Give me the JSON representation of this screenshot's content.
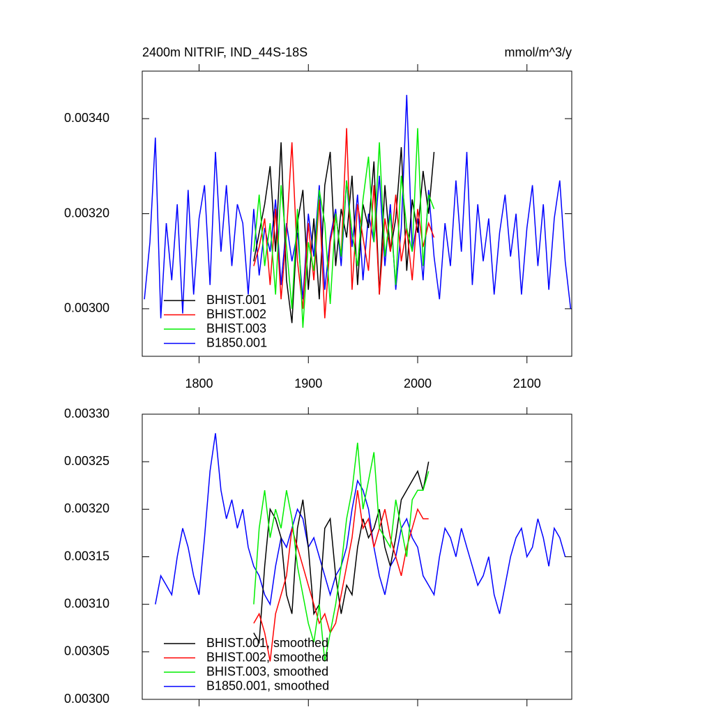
{
  "chart_data": [
    {
      "type": "line",
      "title": "2400m NITRIF, IND_44S-18S",
      "units": "mmol/m^3/y",
      "xlim": [
        1748,
        2141
      ],
      "xticks": [
        1800,
        1900,
        2000,
        2100
      ],
      "ylim": [
        0.0029,
        0.0035
      ],
      "yticks": [
        {
          "value": 0.003,
          "label": "0.00300"
        },
        {
          "value": 0.0032,
          "label": "0.00320"
        },
        {
          "value": 0.0034,
          "label": "0.00340"
        }
      ],
      "legend": "lower left",
      "series": [
        {
          "name": "B1850.001",
          "color": "#0000ff",
          "x": [
            1750,
            1755,
            1760,
            1765,
            1770,
            1775,
            1780,
            1785,
            1790,
            1795,
            1800,
            1805,
            1810,
            1815,
            1820,
            1825,
            1830,
            1835,
            1840,
            1845,
            1850,
            1855,
            1860,
            1865,
            1870,
            1875,
            1880,
            1885,
            1890,
            1895,
            1900,
            1905,
            1910,
            1915,
            1920,
            1925,
            1930,
            1935,
            1940,
            1945,
            1950,
            1955,
            1960,
            1965,
            1970,
            1975,
            1980,
            1985,
            1990,
            1995,
            2000,
            2005,
            2010,
            2015,
            2020,
            2025,
            2030,
            2035,
            2040,
            2045,
            2050,
            2055,
            2060,
            2065,
            2070,
            2075,
            2080,
            2085,
            2090,
            2095,
            2100,
            2105,
            2110,
            2115,
            2120,
            2125,
            2130,
            2135,
            2140
          ],
          "values": [
            0.00302,
            0.00314,
            0.00336,
            0.00298,
            0.00318,
            0.00306,
            0.00322,
            0.00299,
            0.00325,
            0.00303,
            0.00319,
            0.00326,
            0.00305,
            0.00333,
            0.00312,
            0.00326,
            0.00309,
            0.00322,
            0.00318,
            0.00303,
            0.00321,
            0.00307,
            0.00317,
            0.00312,
            0.00323,
            0.00305,
            0.00318,
            0.0031,
            0.00316,
            0.00302,
            0.0032,
            0.00311,
            0.00326,
            0.00304,
            0.00315,
            0.00321,
            0.00309,
            0.00327,
            0.00313,
            0.00324,
            0.00306,
            0.0032,
            0.00314,
            0.00328,
            0.00309,
            0.00322,
            0.00304,
            0.00317,
            0.00345,
            0.00312,
            0.00319,
            0.00306,
            0.00325,
            0.00311,
            0.00302,
            0.00318,
            0.00309,
            0.00327,
            0.00312,
            0.00333,
            0.00305,
            0.00322,
            0.0031,
            0.00319,
            0.00303,
            0.00316,
            0.00324,
            0.00311,
            0.0032,
            0.00303,
            0.00317,
            0.00326,
            0.00309,
            0.00322,
            0.00304,
            0.00319,
            0.00327,
            0.0031,
            0.003
          ]
        },
        {
          "name": "BHIST.001",
          "color": "#000000",
          "x": [
            1850,
            1855,
            1860,
            1865,
            1870,
            1875,
            1880,
            1885,
            1890,
            1895,
            1900,
            1905,
            1910,
            1915,
            1920,
            1925,
            1930,
            1935,
            1940,
            1945,
            1950,
            1955,
            1960,
            1965,
            1970,
            1975,
            1980,
            1985,
            1990,
            1995,
            2000,
            2005,
            2010,
            2015
          ],
          "values": [
            0.0031,
            0.00316,
            0.00322,
            0.0033,
            0.00312,
            0.00335,
            0.00306,
            0.00297,
            0.00318,
            0.00325,
            0.00304,
            0.00319,
            0.00302,
            0.00326,
            0.00333,
            0.00309,
            0.00321,
            0.00315,
            0.00328,
            0.00305,
            0.00322,
            0.00317,
            0.00331,
            0.00303,
            0.00326,
            0.00312,
            0.00319,
            0.00334,
            0.00308,
            0.00323,
            0.00316,
            0.00329,
            0.0032,
            0.00333
          ]
        },
        {
          "name": "BHIST.002",
          "color": "#ff0000",
          "x": [
            1850,
            1855,
            1860,
            1865,
            1870,
            1875,
            1880,
            1885,
            1890,
            1895,
            1900,
            1905,
            1910,
            1915,
            1920,
            1925,
            1930,
            1935,
            1940,
            1945,
            1950,
            1955,
            1960,
            1965,
            1970,
            1975,
            1980,
            1985,
            1990,
            1995,
            2000,
            2005,
            2010,
            2015
          ],
          "values": [
            0.00309,
            0.00313,
            0.00319,
            0.00305,
            0.00321,
            0.00302,
            0.00316,
            0.00335,
            0.0031,
            0.003,
            0.00318,
            0.00306,
            0.00323,
            0.00298,
            0.00314,
            0.0032,
            0.00311,
            0.00338,
            0.00304,
            0.00322,
            0.00315,
            0.00308,
            0.00326,
            0.00303,
            0.00319,
            0.00312,
            0.00324,
            0.0031,
            0.00317,
            0.00306,
            0.00321,
            0.00313,
            0.00318,
            0.00315
          ]
        },
        {
          "name": "BHIST.003",
          "color": "#00ee00",
          "x": [
            1850,
            1855,
            1860,
            1865,
            1870,
            1875,
            1880,
            1885,
            1890,
            1895,
            1900,
            1905,
            1910,
            1915,
            1920,
            1925,
            1930,
            1935,
            1940,
            1945,
            1950,
            1955,
            1960,
            1965,
            1970,
            1975,
            1980,
            1985,
            1990,
            1995,
            2000,
            2005,
            2010,
            2015
          ],
          "values": [
            0.00312,
            0.00324,
            0.00309,
            0.00318,
            0.00303,
            0.00326,
            0.00313,
            0.003,
            0.00321,
            0.00296,
            0.00314,
            0.00308,
            0.00325,
            0.00318,
            0.00301,
            0.0032,
            0.00311,
            0.00327,
            0.00316,
            0.00309,
            0.00323,
            0.00332,
            0.00314,
            0.00335,
            0.00311,
            0.0032,
            0.00305,
            0.00328,
            0.00317,
            0.00312,
            0.00338,
            0.00309,
            0.00324,
            0.00321
          ]
        }
      ],
      "legend_order": [
        1,
        2,
        3,
        0
      ]
    },
    {
      "type": "line",
      "xlim": [
        1748,
        2141
      ],
      "xticks": [
        1800,
        1900,
        2000,
        2100
      ],
      "ylim": [
        0.003,
        0.0033
      ],
      "yticks": [
        {
          "value": 0.003,
          "label": "0.00300"
        },
        {
          "value": 0.00305,
          "label": "0.00305"
        },
        {
          "value": 0.0031,
          "label": "0.00310"
        },
        {
          "value": 0.00315,
          "label": "0.00315"
        },
        {
          "value": 0.0032,
          "label": "0.00320"
        },
        {
          "value": 0.00325,
          "label": "0.00325"
        },
        {
          "value": 0.0033,
          "label": "0.00330"
        }
      ],
      "legend": "lower left",
      "series": [
        {
          "name": "B1850.001, smoothed",
          "color": "#0000ff",
          "x": [
            1760,
            1765,
            1770,
            1775,
            1780,
            1785,
            1790,
            1795,
            1800,
            1805,
            1810,
            1815,
            1820,
            1825,
            1830,
            1835,
            1840,
            1845,
            1850,
            1855,
            1860,
            1865,
            1870,
            1875,
            1880,
            1885,
            1890,
            1895,
            1900,
            1905,
            1910,
            1915,
            1920,
            1925,
            1930,
            1935,
            1940,
            1945,
            1950,
            1955,
            1960,
            1965,
            1970,
            1975,
            1980,
            1985,
            1990,
            1995,
            2000,
            2005,
            2010,
            2015,
            2020,
            2025,
            2030,
            2035,
            2040,
            2045,
            2050,
            2055,
            2060,
            2065,
            2070,
            2075,
            2080,
            2085,
            2090,
            2095,
            2100,
            2105,
            2110,
            2115,
            2120,
            2125,
            2130,
            2135
          ],
          "values": [
            0.0031,
            0.00313,
            0.00312,
            0.00311,
            0.00315,
            0.00318,
            0.00316,
            0.00313,
            0.00311,
            0.00317,
            0.00324,
            0.00328,
            0.00322,
            0.00319,
            0.00321,
            0.00318,
            0.0032,
            0.00316,
            0.00314,
            0.00313,
            0.00311,
            0.0031,
            0.00314,
            0.00317,
            0.00316,
            0.00318,
            0.0032,
            0.00319,
            0.00316,
            0.00317,
            0.00315,
            0.00313,
            0.00311,
            0.00313,
            0.00314,
            0.00316,
            0.0032,
            0.00323,
            0.00322,
            0.0032,
            0.00316,
            0.00313,
            0.00311,
            0.00314,
            0.00315,
            0.00318,
            0.00319,
            0.00317,
            0.00316,
            0.00313,
            0.00312,
            0.00311,
            0.00315,
            0.00318,
            0.00317,
            0.00315,
            0.00318,
            0.00316,
            0.00314,
            0.00312,
            0.00313,
            0.00315,
            0.00311,
            0.00309,
            0.00312,
            0.00315,
            0.00317,
            0.00318,
            0.00315,
            0.00316,
            0.00319,
            0.00317,
            0.00314,
            0.00318,
            0.00317,
            0.00315
          ]
        },
        {
          "name": "BHIST.001, smoothed",
          "color": "#000000",
          "x": [
            1850,
            1855,
            1860,
            1865,
            1870,
            1875,
            1880,
            1885,
            1890,
            1895,
            1900,
            1905,
            1910,
            1915,
            1920,
            1925,
            1930,
            1935,
            1940,
            1945,
            1950,
            1955,
            1960,
            1965,
            1970,
            1975,
            1980,
            1985,
            1990,
            1995,
            2000,
            2005,
            2010
          ],
          "values": [
            0.00307,
            0.00306,
            0.00314,
            0.0032,
            0.00319,
            0.00317,
            0.00311,
            0.00309,
            0.00318,
            0.00321,
            0.00316,
            0.00309,
            0.0031,
            0.00318,
            0.00319,
            0.00313,
            0.00309,
            0.00312,
            0.00311,
            0.00316,
            0.00319,
            0.00317,
            0.00318,
            0.0032,
            0.00316,
            0.00314,
            0.00317,
            0.00321,
            0.00322,
            0.00323,
            0.00324,
            0.00322,
            0.00325
          ]
        },
        {
          "name": "BHIST.002, smoothed",
          "color": "#ff0000",
          "x": [
            1850,
            1855,
            1860,
            1865,
            1870,
            1875,
            1880,
            1885,
            1890,
            1895,
            1900,
            1905,
            1910,
            1915,
            1920,
            1925,
            1930,
            1935,
            1940,
            1945,
            1950,
            1955,
            1960,
            1965,
            1970,
            1975,
            1980,
            1985,
            1990,
            1995,
            2000,
            2005,
            2010
          ],
          "values": [
            0.00308,
            0.00309,
            0.00307,
            0.00304,
            0.00309,
            0.00311,
            0.00313,
            0.00318,
            0.00316,
            0.00314,
            0.00312,
            0.0031,
            0.00308,
            0.00309,
            0.00307,
            0.00308,
            0.00311,
            0.00314,
            0.00317,
            0.00322,
            0.00318,
            0.00319,
            0.00316,
            0.00318,
            0.0032,
            0.00317,
            0.00315,
            0.00313,
            0.00316,
            0.00318,
            0.0032,
            0.00319,
            0.00319
          ]
        },
        {
          "name": "BHIST.003, smoothed",
          "color": "#00ee00",
          "x": [
            1850,
            1855,
            1860,
            1865,
            1870,
            1875,
            1880,
            1885,
            1890,
            1895,
            1900,
            1905,
            1910,
            1915,
            1920,
            1925,
            1930,
            1935,
            1940,
            1945,
            1950,
            1955,
            1960,
            1965,
            1970,
            1975,
            1980,
            1985,
            1990,
            1995,
            2000,
            2005,
            2010
          ],
          "values": [
            0.0031,
            0.00318,
            0.00322,
            0.00317,
            0.0032,
            0.00318,
            0.00322,
            0.00319,
            0.00314,
            0.00311,
            0.00308,
            0.00306,
            0.0031,
            0.00304,
            0.00307,
            0.0031,
            0.00314,
            0.00319,
            0.00322,
            0.00327,
            0.0032,
            0.00323,
            0.00326,
            0.00318,
            0.00317,
            0.00316,
            0.00321,
            0.00318,
            0.00315,
            0.00321,
            0.00322,
            0.00322,
            0.00324
          ]
        }
      ],
      "legend_order": [
        1,
        2,
        3,
        0
      ]
    }
  ]
}
